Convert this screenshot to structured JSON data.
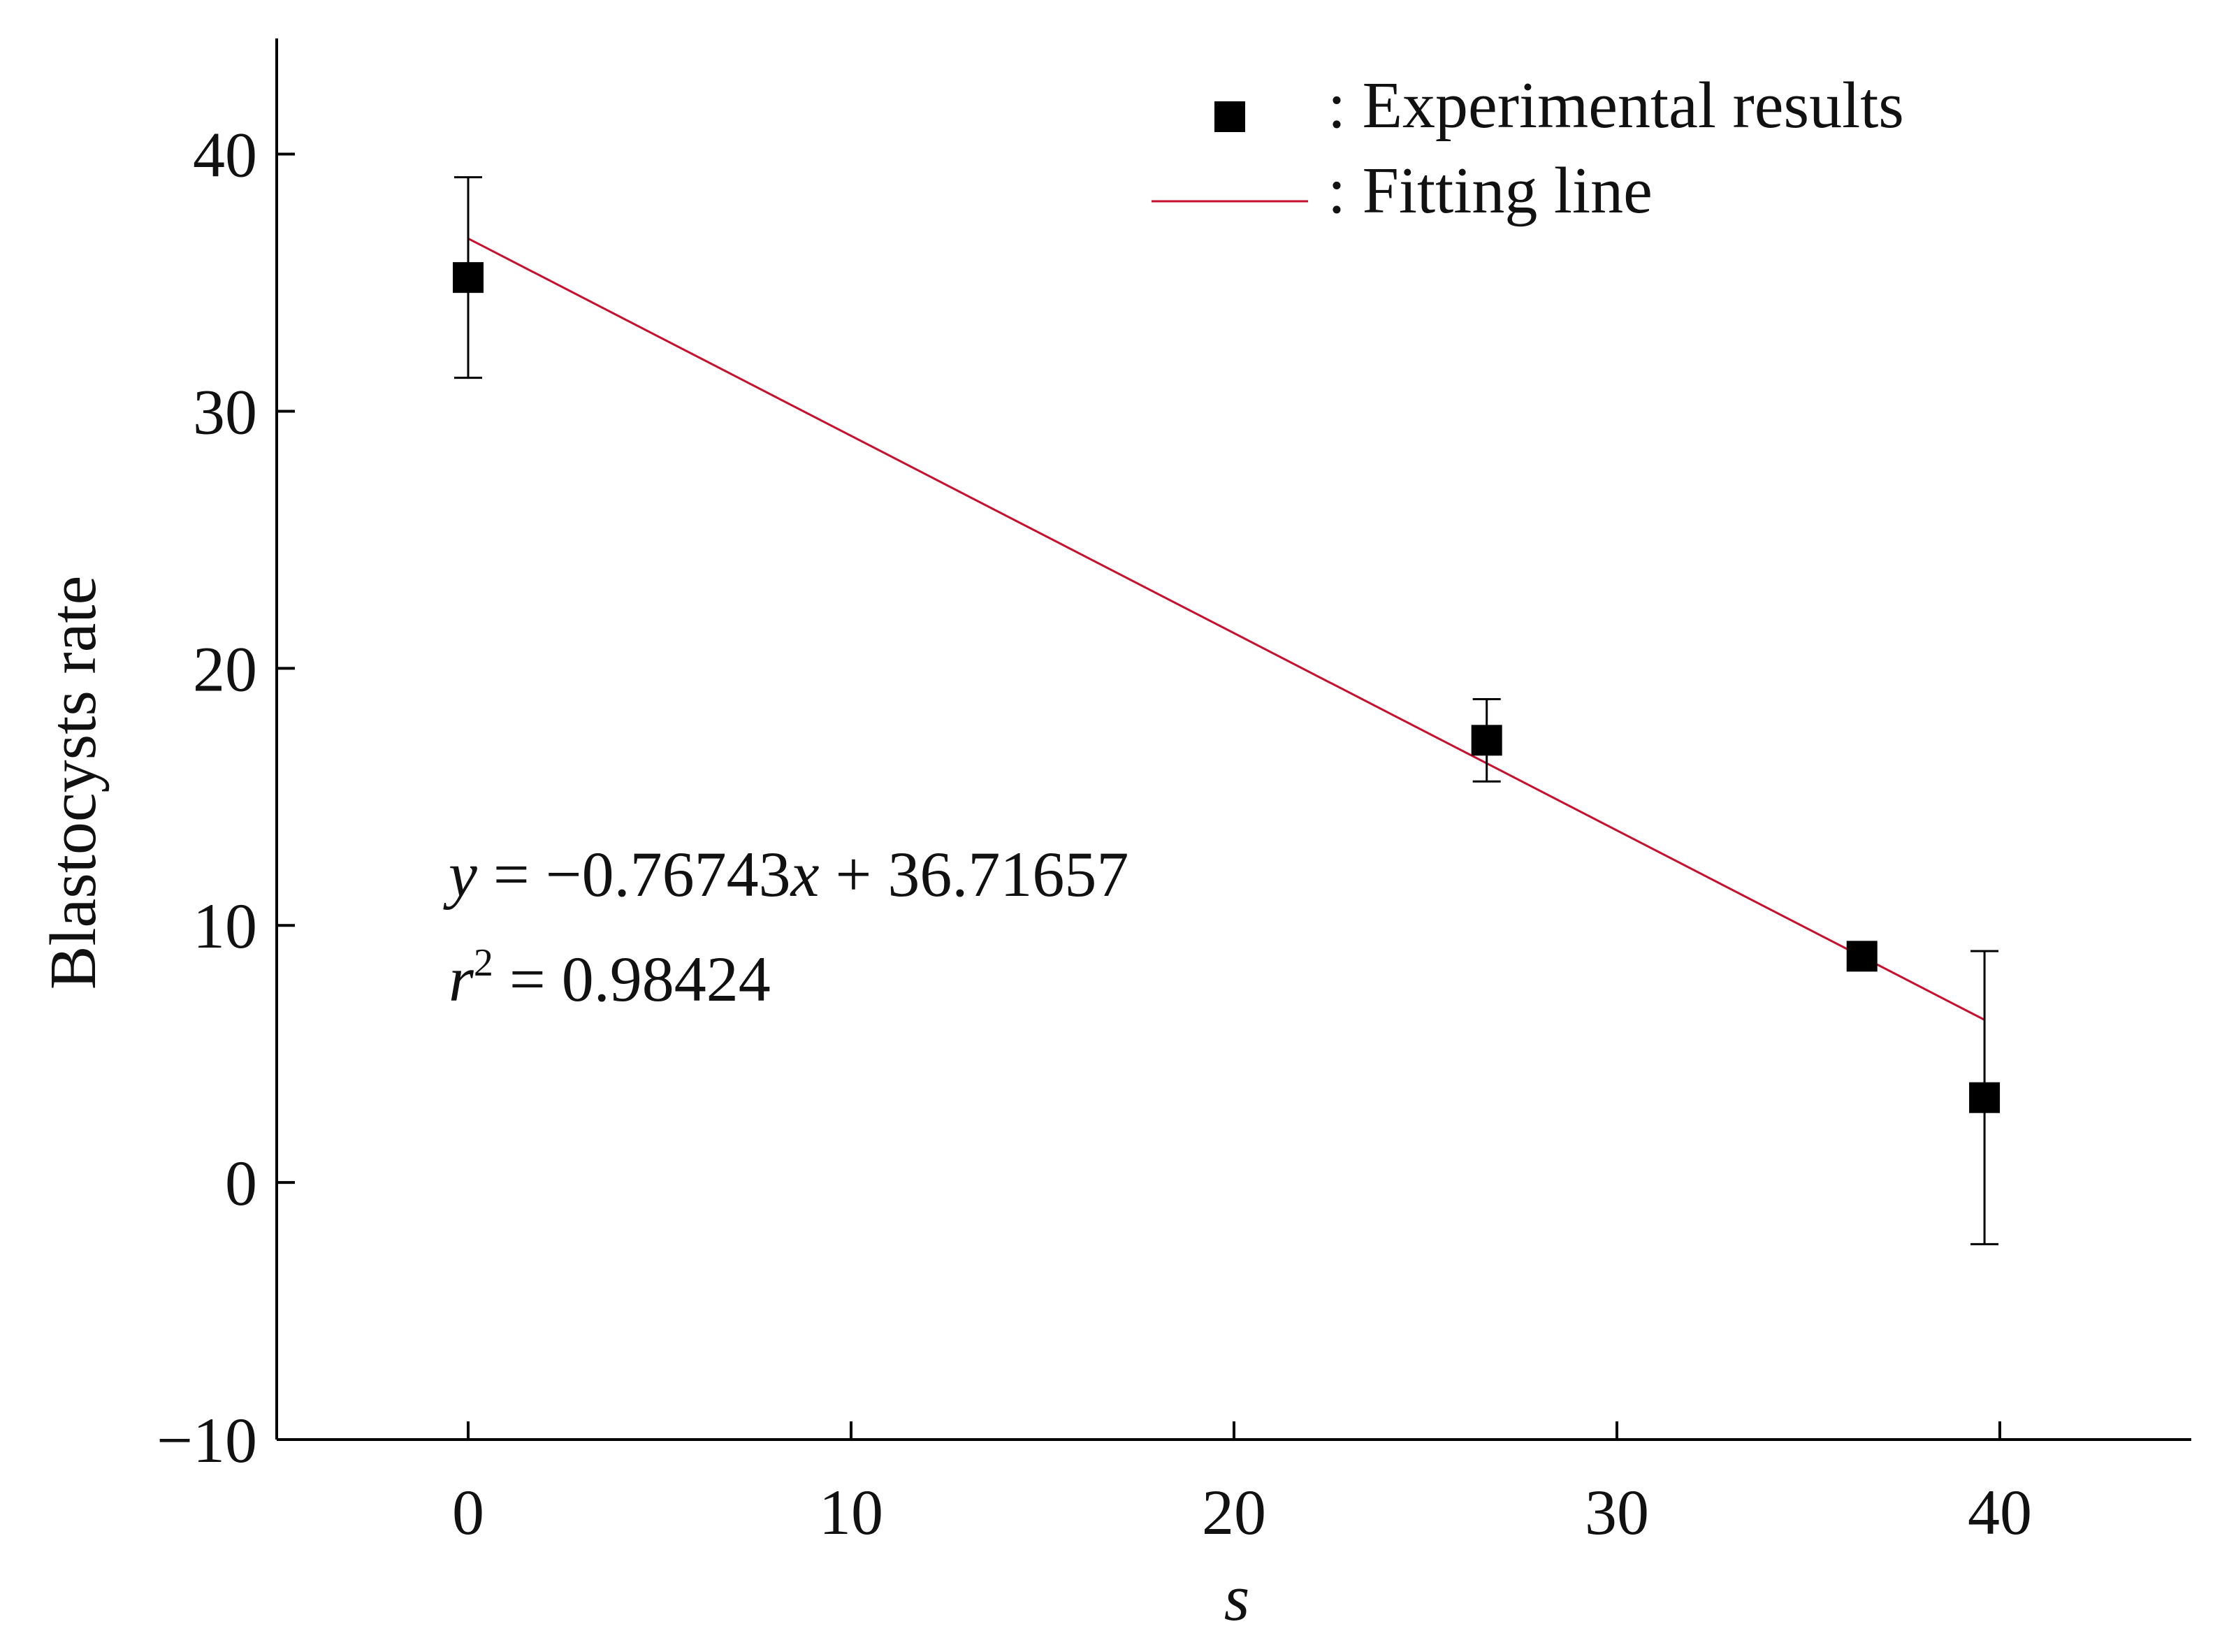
{
  "chart_data": {
    "type": "scatter",
    "xlabel": "s",
    "ylabel": "Blastocysts rate",
    "xlim": [
      -5,
      45
    ],
    "ylim": [
      -10,
      44.5
    ],
    "xticks": [
      0,
      10,
      20,
      30,
      40
    ],
    "yticks": [
      -10,
      0,
      10,
      20,
      30,
      40
    ],
    "xtick_labels": [
      "0",
      "10",
      "20",
      "30",
      "40"
    ],
    "ytick_labels": [
      "−10",
      "0",
      "10",
      "20",
      "30",
      "40"
    ],
    "grid": false,
    "legend_position": "top-right",
    "series": [
      {
        "name": "Experimental results",
        "marker": "square",
        "color": "#000000",
        "points": [
          {
            "x": 0,
            "y": 35.2,
            "err_low": 31.3,
            "err_high": 39.1
          },
          {
            "x": 26.6,
            "y": 17.2,
            "err_low": 15.6,
            "err_high": 18.8
          },
          {
            "x": 36.4,
            "y": 8.8,
            "err_low": 8.8,
            "err_high": 8.8
          },
          {
            "x": 39.6,
            "y": 3.3,
            "err_low": -2.4,
            "err_high": 9.0
          }
        ]
      },
      {
        "name": "Fitting line",
        "type": "line",
        "color": "#c8102e",
        "slope": -0.76743,
        "intercept": 36.71657,
        "x_range": [
          0,
          39.6
        ]
      }
    ],
    "legend": [
      {
        "marker": "square",
        "label": ": Experimental results"
      },
      {
        "marker": "line",
        "label": ": Fitting line"
      }
    ],
    "annotations": {
      "equation": {
        "y_var": "y",
        "mid": " = −0.76743",
        "x_var": "x",
        "tail": " + 36.71657"
      },
      "r_squared": {
        "var": "r",
        "sup": "2",
        "tail": " = 0.98424"
      }
    }
  }
}
